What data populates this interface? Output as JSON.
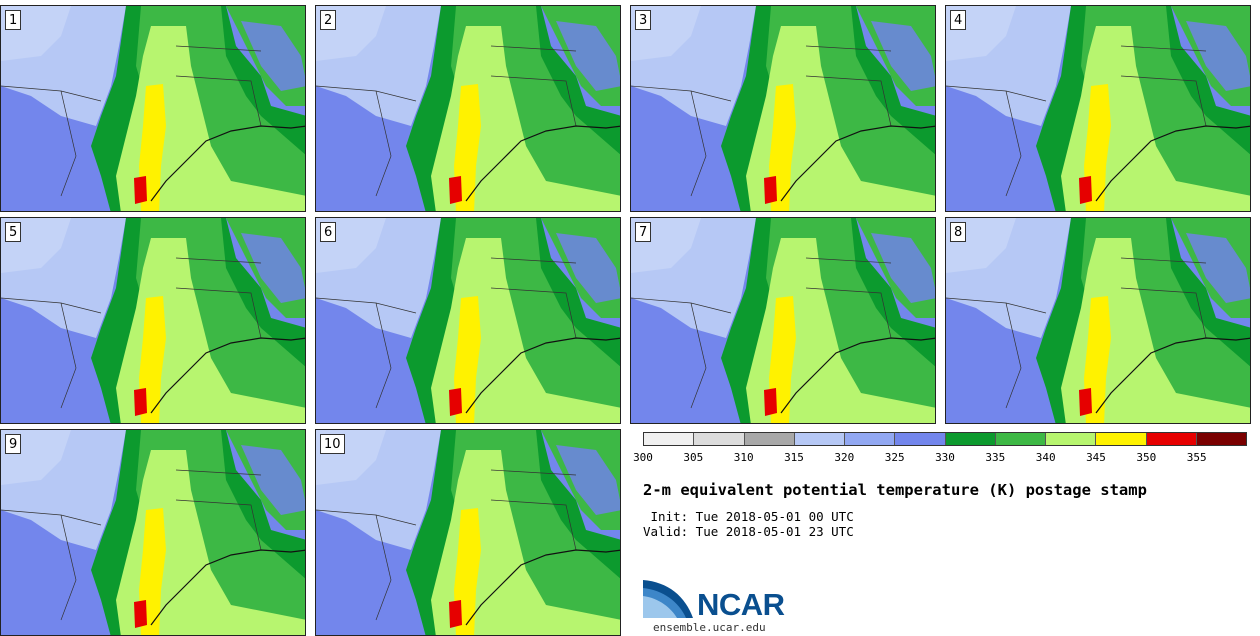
{
  "panels": [
    {
      "label": "1"
    },
    {
      "label": "2"
    },
    {
      "label": "3"
    },
    {
      "label": "4"
    },
    {
      "label": "5"
    },
    {
      "label": "6"
    },
    {
      "label": "7"
    },
    {
      "label": "8"
    },
    {
      "label": "9"
    },
    {
      "label": "10"
    }
  ],
  "colorbar": {
    "colors": [
      "#f0f0f0",
      "#dcdcdc",
      "#a8a8a8",
      "#b6c8f5",
      "#92a8f2",
      "#7386ec",
      "#0c9a2e",
      "#3db845",
      "#b7f56f",
      "#fff200",
      "#e60000",
      "#7a0000"
    ],
    "ticks": [
      "300",
      "305",
      "310",
      "315",
      "320",
      "325",
      "330",
      "335",
      "340",
      "345",
      "350",
      "355"
    ]
  },
  "title": "2-m equivalent potential temperature (K) postage stamp",
  "init": " Init: Tue 2018-05-01 00 UTC",
  "valid": "Valid: Tue 2018-05-01 23 UTC",
  "logo": {
    "text": "NCAR",
    "url": "ensemble.ucar.edu"
  }
}
